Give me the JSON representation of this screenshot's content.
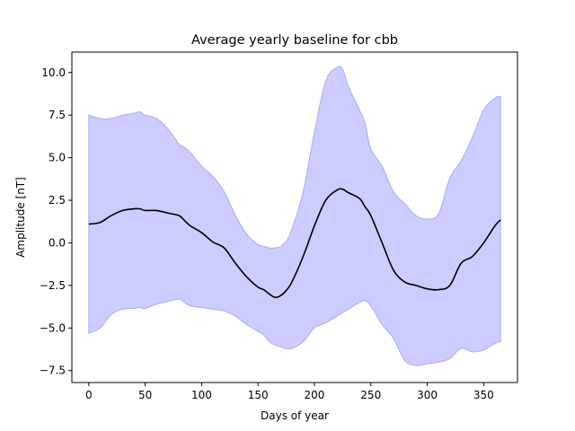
{
  "chart_data": {
    "type": "line",
    "title": "Average yearly baseline for cbb",
    "xlabel": "Days of year",
    "ylabel": "Amplitude [nT]",
    "xlim": [
      -15,
      380
    ],
    "ylim": [
      -8.2,
      11.2
    ],
    "xticks": [
      0,
      50,
      100,
      150,
      200,
      250,
      300,
      350
    ],
    "yticks": [
      -7.5,
      -5.0,
      -2.5,
      0.0,
      2.5,
      5.0,
      7.5,
      10.0
    ],
    "xtick_labels": [
      "0",
      "50",
      "100",
      "150",
      "200",
      "250",
      "300",
      "350"
    ],
    "ytick_labels": [
      "−7.5",
      "−5.0",
      "−2.5",
      "0.0",
      "2.5",
      "5.0",
      "7.5",
      "10.0"
    ],
    "colors": {
      "mean_line": "#000000",
      "band_fill": "#ccccff",
      "band_edge": "#aaaaff"
    },
    "series": [
      {
        "name": "mean",
        "x": [
          0,
          10,
          20,
          30,
          40,
          45,
          50,
          60,
          70,
          80,
          85,
          90,
          100,
          110,
          120,
          130,
          140,
          150,
          155,
          160,
          165,
          170,
          175,
          180,
          190,
          200,
          210,
          220,
          225,
          230,
          240,
          245,
          250,
          260,
          270,
          280,
          290,
          300,
          310,
          320,
          330,
          340,
          350,
          360,
          365
        ],
        "y": [
          1.1,
          1.2,
          1.6,
          1.9,
          2.0,
          2.0,
          1.9,
          1.9,
          1.75,
          1.6,
          1.3,
          1.0,
          0.6,
          0.05,
          -0.3,
          -1.2,
          -2.0,
          -2.6,
          -2.75,
          -3.0,
          -3.2,
          -3.1,
          -2.8,
          -2.3,
          -0.8,
          1.0,
          2.5,
          3.1,
          3.15,
          2.95,
          2.6,
          2.1,
          1.6,
          0.0,
          -1.6,
          -2.3,
          -2.5,
          -2.7,
          -2.75,
          -2.5,
          -1.2,
          -0.8,
          0.0,
          1.0,
          1.35
        ]
      }
    ],
    "band": {
      "name": "range",
      "x": [
        0,
        10,
        20,
        30,
        40,
        45,
        50,
        60,
        70,
        80,
        85,
        90,
        100,
        110,
        120,
        130,
        140,
        150,
        155,
        160,
        165,
        170,
        175,
        180,
        190,
        200,
        210,
        220,
        225,
        230,
        240,
        245,
        250,
        260,
        270,
        280,
        290,
        300,
        310,
        320,
        330,
        340,
        350,
        360,
        365
      ],
      "upper": [
        7.5,
        7.3,
        7.3,
        7.5,
        7.6,
        7.7,
        7.5,
        7.3,
        6.7,
        5.8,
        5.6,
        5.3,
        4.5,
        3.9,
        3.0,
        1.6,
        0.5,
        -0.1,
        -0.2,
        -0.3,
        -0.3,
        -0.2,
        0.1,
        0.8,
        3.0,
        6.5,
        9.5,
        10.3,
        10.2,
        9.2,
        7.8,
        7.0,
        5.5,
        4.5,
        3.0,
        2.3,
        1.6,
        1.4,
        1.7,
        3.8,
        4.8,
        6.2,
        7.8,
        8.5,
        8.6
      ],
      "lower": [
        -5.3,
        -5.0,
        -4.2,
        -3.9,
        -3.85,
        -3.8,
        -3.85,
        -3.6,
        -3.45,
        -3.3,
        -3.5,
        -3.7,
        -3.8,
        -3.9,
        -4.0,
        -4.3,
        -4.8,
        -5.2,
        -5.4,
        -5.8,
        -6.0,
        -6.1,
        -6.2,
        -6.2,
        -5.8,
        -5.0,
        -4.7,
        -4.3,
        -4.1,
        -3.9,
        -3.5,
        -3.4,
        -3.7,
        -4.8,
        -5.6,
        -6.9,
        -7.2,
        -7.1,
        -7.0,
        -6.8,
        -6.2,
        -6.4,
        -6.3,
        -5.9,
        -5.8
      ]
    }
  }
}
